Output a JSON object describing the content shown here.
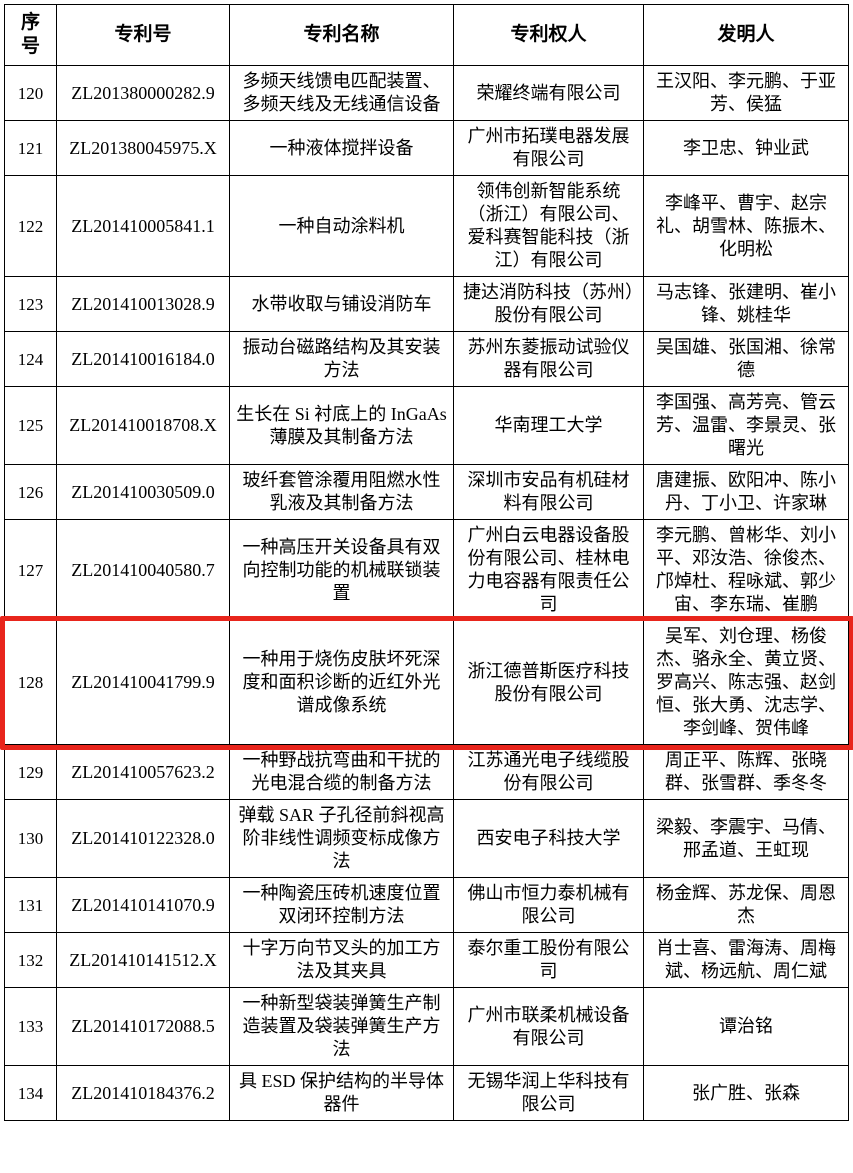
{
  "colors": {
    "background": "#ffffff",
    "table_border": "#000000",
    "text": "#000000",
    "highlight_border": "#e8251c"
  },
  "table": {
    "columns": [
      {
        "key": "index",
        "label": "序号"
      },
      {
        "key": "patent_no",
        "label": "专利号"
      },
      {
        "key": "patent_name",
        "label": "专利名称"
      },
      {
        "key": "patent_holder",
        "label": "专利权人"
      },
      {
        "key": "inventors",
        "label": "发明人"
      }
    ],
    "highlighted_index": "128",
    "rows": [
      {
        "index": "120",
        "patent_no": "ZL201380000282.9",
        "patent_name": "多频天线馈电匹配装置、多频天线及无线通信设备",
        "patent_holder": "荣耀终端有限公司",
        "inventors": "王汉阳、李元鹏、于亚芳、侯猛"
      },
      {
        "index": "121",
        "patent_no": "ZL201380045975.X",
        "patent_name": "一种液体搅拌设备",
        "patent_holder": "广州市拓璞电器发展有限公司",
        "inventors": "李卫忠、钟业武"
      },
      {
        "index": "122",
        "patent_no": "ZL201410005841.1",
        "patent_name": "一种自动涂料机",
        "patent_holder": "领伟创新智能系统（浙江）有限公司、爱科赛智能科技（浙江）有限公司",
        "inventors": "李峰平、曹宇、赵宗礼、胡雪林、陈振木、化明松"
      },
      {
        "index": "123",
        "patent_no": "ZL201410013028.9",
        "patent_name": "水带收取与铺设消防车",
        "patent_holder": "捷达消防科技（苏州）股份有限公司",
        "inventors": "马志锋、张建明、崔小锋、姚桂华"
      },
      {
        "index": "124",
        "patent_no": "ZL201410016184.0",
        "patent_name": "振动台磁路结构及其安装方法",
        "patent_holder": "苏州东菱振动试验仪器有限公司",
        "inventors": "吴国雄、张国湘、徐常德"
      },
      {
        "index": "125",
        "patent_no": "ZL201410018708.X",
        "patent_name": "生长在 Si 衬底上的 InGaAs 薄膜及其制备方法",
        "patent_holder": "华南理工大学",
        "inventors": "李国强、高芳亮、管云芳、温雷、李景灵、张曙光"
      },
      {
        "index": "126",
        "patent_no": "ZL201410030509.0",
        "patent_name": "玻纤套管涂覆用阻燃水性乳液及其制备方法",
        "patent_holder": "深圳市安品有机硅材料有限公司",
        "inventors": "唐建振、欧阳冲、陈小丹、丁小卫、许家琳"
      },
      {
        "index": "127",
        "patent_no": "ZL201410040580.7",
        "patent_name": "一种高压开关设备具有双向控制功能的机械联锁装置",
        "patent_holder": "广州白云电器设备股份有限公司、桂林电力电容器有限责任公司",
        "inventors": "李元鹏、曾彬华、刘小平、邓汝浩、徐俊杰、邝焯杜、程咏斌、郭少宙、李东瑞、崔鹏"
      },
      {
        "index": "128",
        "patent_no": "ZL201410041799.9",
        "patent_name": "一种用于烧伤皮肤坏死深度和面积诊断的近红外光谱成像系统",
        "patent_holder": "浙江德普斯医疗科技股份有限公司",
        "inventors": "吴军、刘仓理、杨俊杰、骆永全、黄立贤、罗高兴、陈志强、赵剑恒、张大勇、沈志学、李剑峰、贺伟峰"
      },
      {
        "index": "129",
        "patent_no": "ZL201410057623.2",
        "patent_name": "一种野战抗弯曲和干扰的光电混合缆的制备方法",
        "patent_holder": "江苏通光电子线缆股份有限公司",
        "inventors": "周正平、陈辉、张晓群、张雪群、季冬冬"
      },
      {
        "index": "130",
        "patent_no": "ZL201410122328.0",
        "patent_name": "弹载 SAR 子孔径前斜视高阶非线性调频变标成像方法",
        "patent_holder": "西安电子科技大学",
        "inventors": "梁毅、李震宇、马倩、邢孟道、王虹现"
      },
      {
        "index": "131",
        "patent_no": "ZL201410141070.9",
        "patent_name": "一种陶瓷压砖机速度位置双闭环控制方法",
        "patent_holder": "佛山市恒力泰机械有限公司",
        "inventors": "杨金辉、苏龙保、周恩杰"
      },
      {
        "index": "132",
        "patent_no": "ZL201410141512.X",
        "patent_name": "十字万向节叉头的加工方法及其夹具",
        "patent_holder": "泰尔重工股份有限公司",
        "inventors": "肖士喜、雷海涛、周梅斌、杨远航、周仁斌"
      },
      {
        "index": "133",
        "patent_no": "ZL201410172088.5",
        "patent_name": "一种新型袋装弹簧生产制造装置及袋装弹簧生产方法",
        "patent_holder": "广州市联柔机械设备有限公司",
        "inventors": "谭治铭"
      },
      {
        "index": "134",
        "patent_no": "ZL201410184376.2",
        "patent_name": "具 ESD 保护结构的半导体器件",
        "patent_holder": "无锡华润上华科技有限公司",
        "inventors": "张广胜、张森"
      }
    ]
  }
}
